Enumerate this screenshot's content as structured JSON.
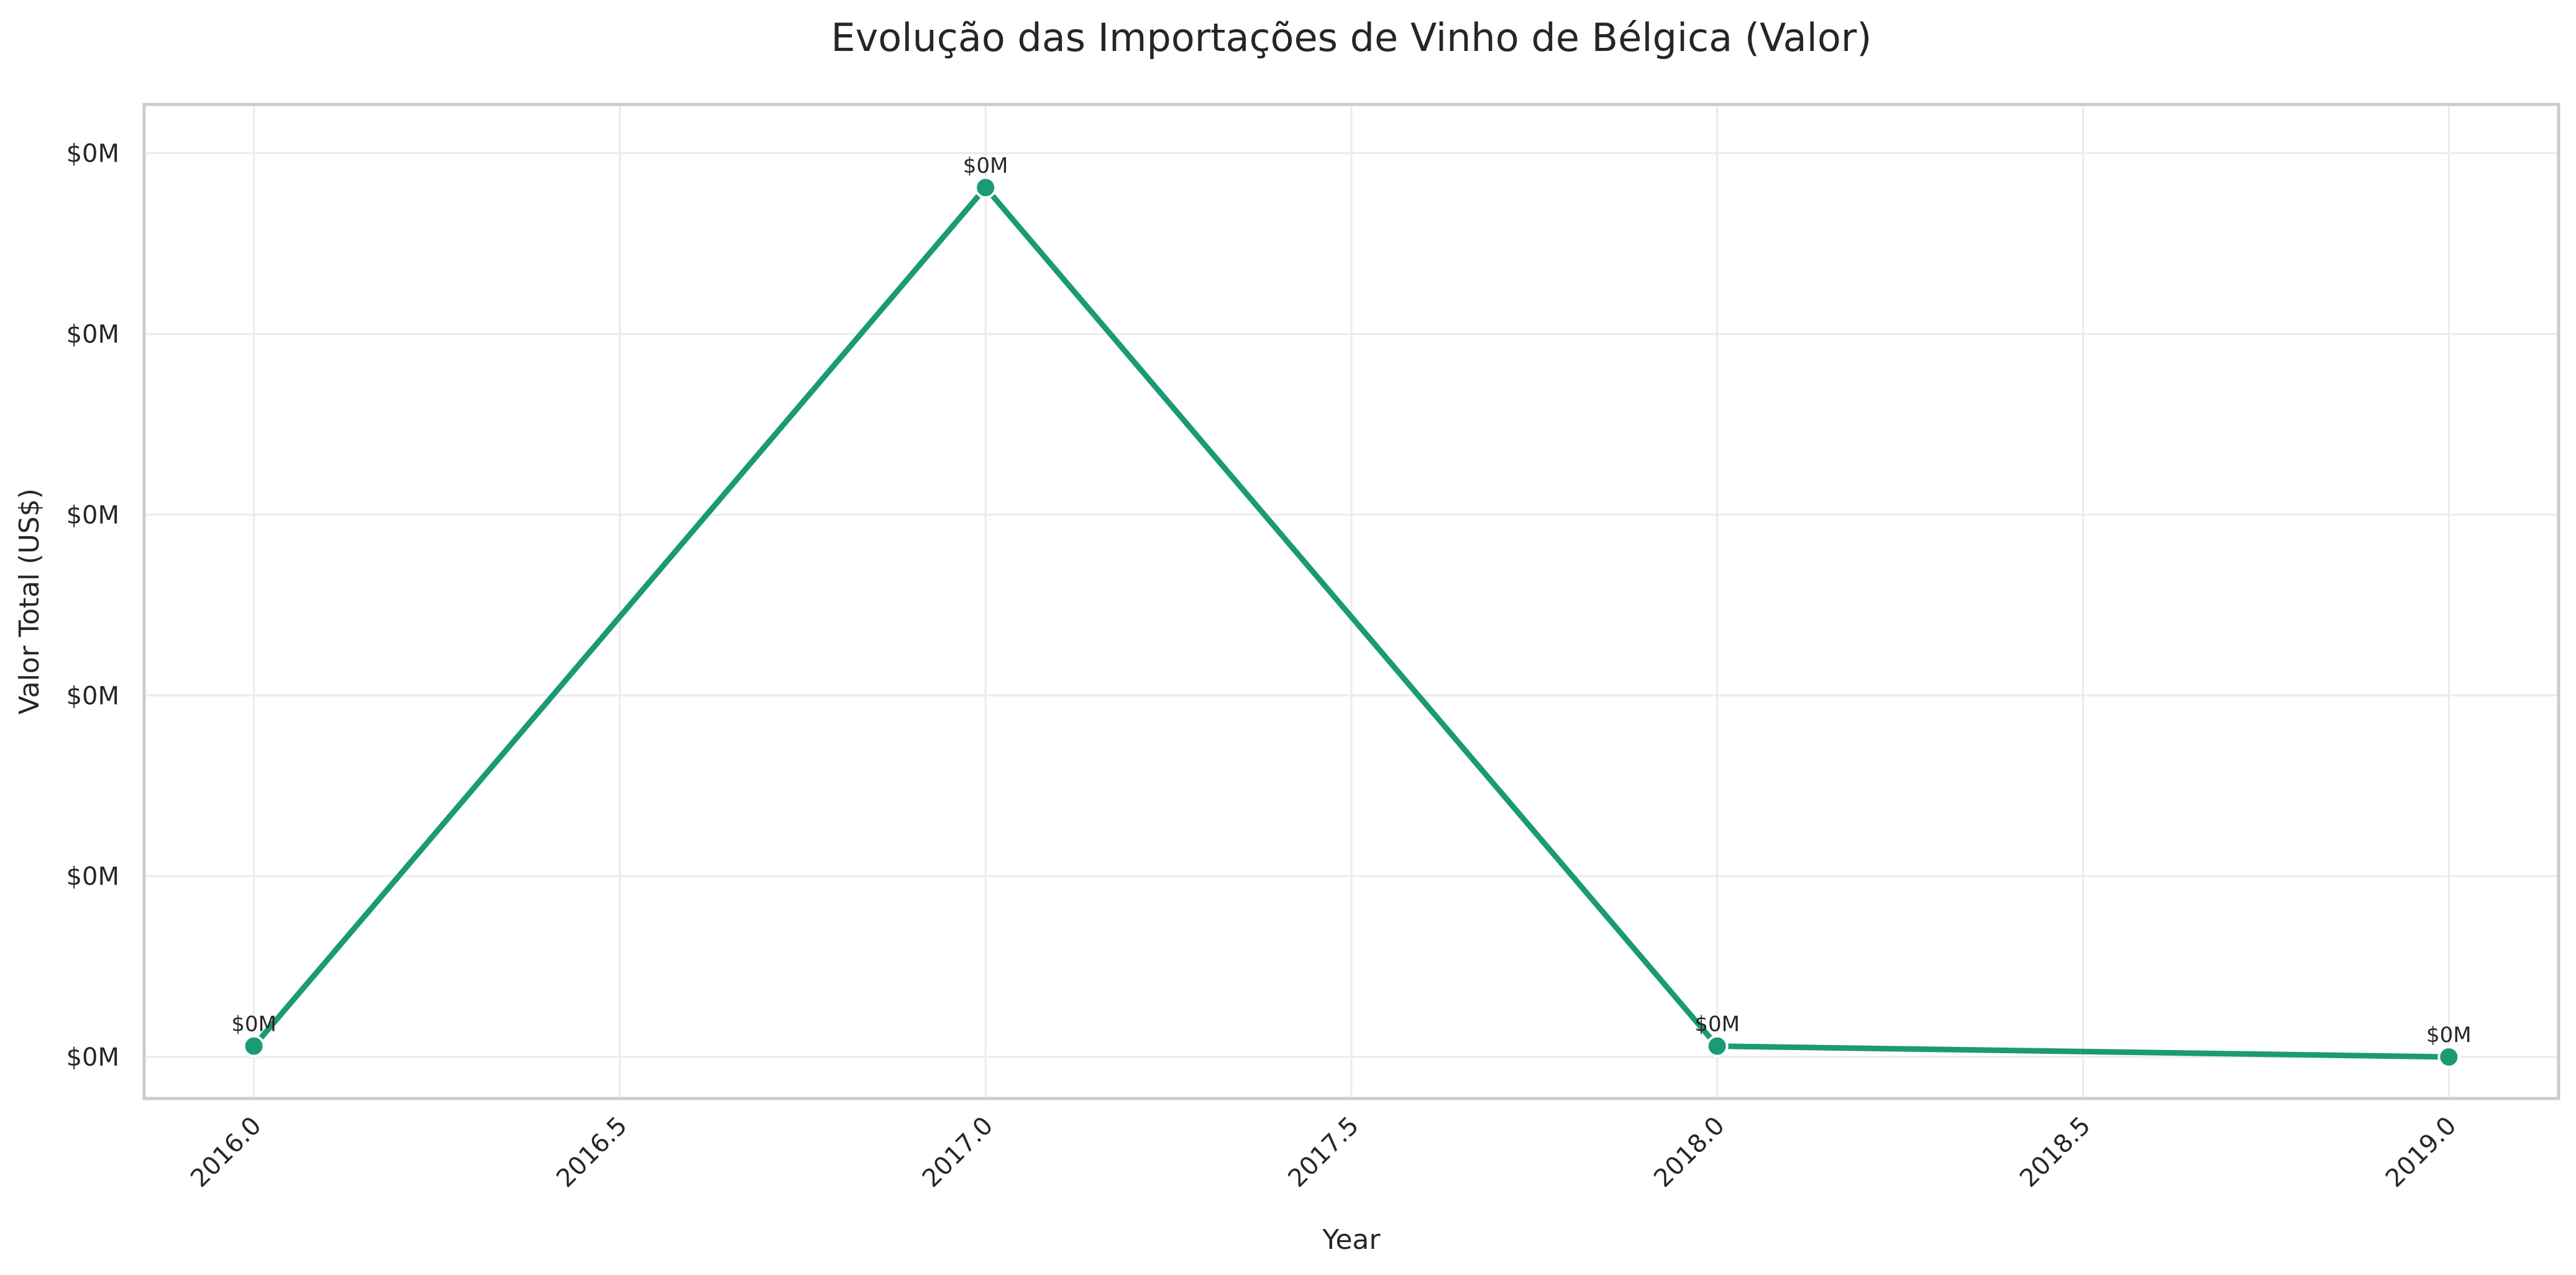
{
  "chart_data": {
    "type": "line",
    "title": "Evolução das Importações de Vinho de Bélgica (Valor)",
    "xlabel": "Year",
    "ylabel": "Valor Total (US$)",
    "x": [
      2016,
      2017,
      2018,
      2019
    ],
    "xlim": [
      2015.85,
      2019.15
    ],
    "xticks": [
      2016.0,
      2016.5,
      2017.0,
      2017.5,
      2018.0,
      2018.5,
      2019.0
    ],
    "xtick_labels": [
      "2016.0",
      "2016.5",
      "2017.0",
      "2017.5",
      "2018.0",
      "2018.5",
      "2019.0"
    ],
    "ylim": [
      -0.023,
      0.527
    ],
    "yticks": [
      0,
      0.1,
      0.2,
      0.3,
      0.4,
      0.5
    ],
    "ytick_labels": [
      "$0M",
      "$0M",
      "$0M",
      "$0M",
      "$0M",
      "$0M"
    ],
    "grid": true,
    "series": [
      {
        "values": [
          0.006,
          0.481,
          0.006,
          0.0
        ],
        "point_labels": [
          "$0M",
          "$0M",
          "$0M",
          "$0M"
        ],
        "color": "#1a9a75"
      }
    ]
  }
}
